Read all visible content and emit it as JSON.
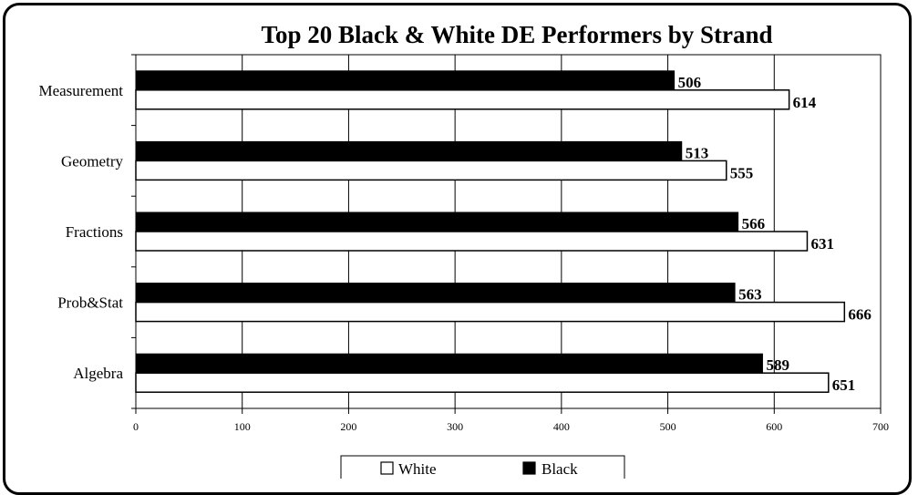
{
  "chart_data": {
    "type": "bar",
    "orientation": "horizontal",
    "title": "Top 20 Black & White DE Performers by Strand",
    "xlabel": "",
    "ylabel": "",
    "categories": [
      "Measurement",
      "Geometry",
      "Fractions",
      "Prob&Stat",
      "Algebra"
    ],
    "series": [
      {
        "name": "Black",
        "values": [
          506,
          513,
          566,
          563,
          589
        ],
        "color": "#000000"
      },
      {
        "name": "White",
        "values": [
          614,
          555,
          631,
          666,
          651
        ],
        "color": "#ffffff"
      }
    ],
    "xlim": [
      0,
      700
    ],
    "xticks": [
      0,
      100,
      200,
      300,
      400,
      500,
      600,
      700
    ],
    "grid": "vertical",
    "legend_position": "bottom"
  }
}
